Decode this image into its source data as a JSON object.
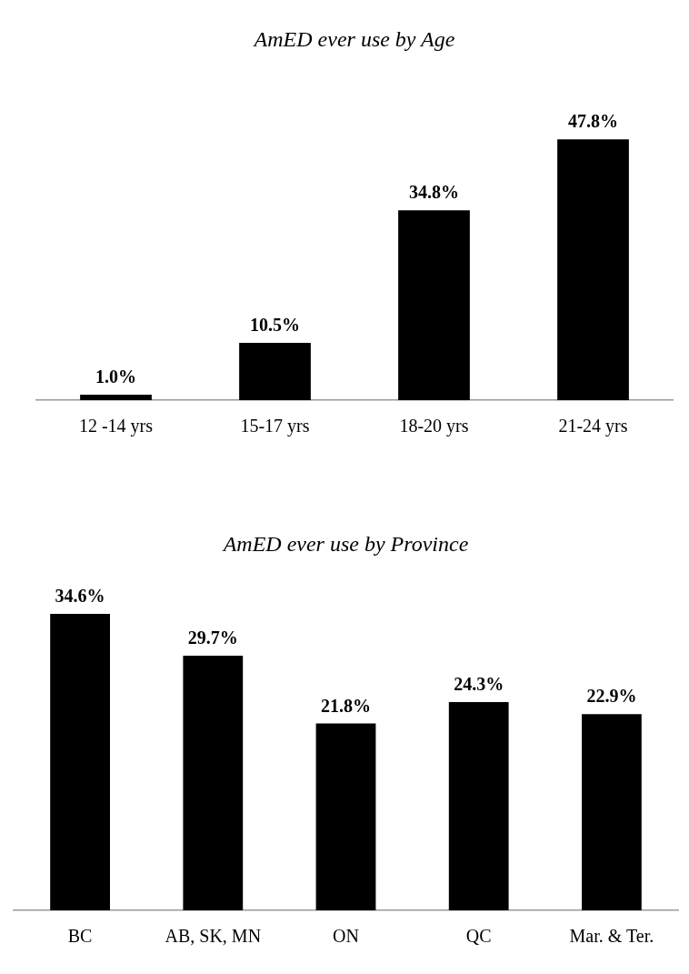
{
  "chart_data": [
    {
      "type": "bar",
      "title": "AmED ever use by Age",
      "categories": [
        "12 -14 yrs",
        "15-17 yrs",
        "18-20 yrs",
        "21-24 yrs"
      ],
      "values": [
        1.0,
        10.5,
        34.8,
        47.8
      ],
      "value_labels": [
        "1.0%",
        "10.5%",
        "34.8%",
        "47.8%"
      ],
      "color": "#000000",
      "grid": false,
      "legend": false,
      "tick_labels": "x"
    },
    {
      "type": "bar",
      "title": "AmED ever use by Province",
      "categories": [
        "BC",
        "AB, SK, MN",
        "ON",
        "QC",
        "Mar. & Ter."
      ],
      "values": [
        34.6,
        29.7,
        21.8,
        24.3,
        22.9
      ],
      "value_labels": [
        "34.6%",
        "29.7%",
        "21.8%",
        "24.3%",
        "22.9%"
      ],
      "color": "#000000",
      "grid": false,
      "legend": false,
      "tick_labels": "x"
    }
  ]
}
